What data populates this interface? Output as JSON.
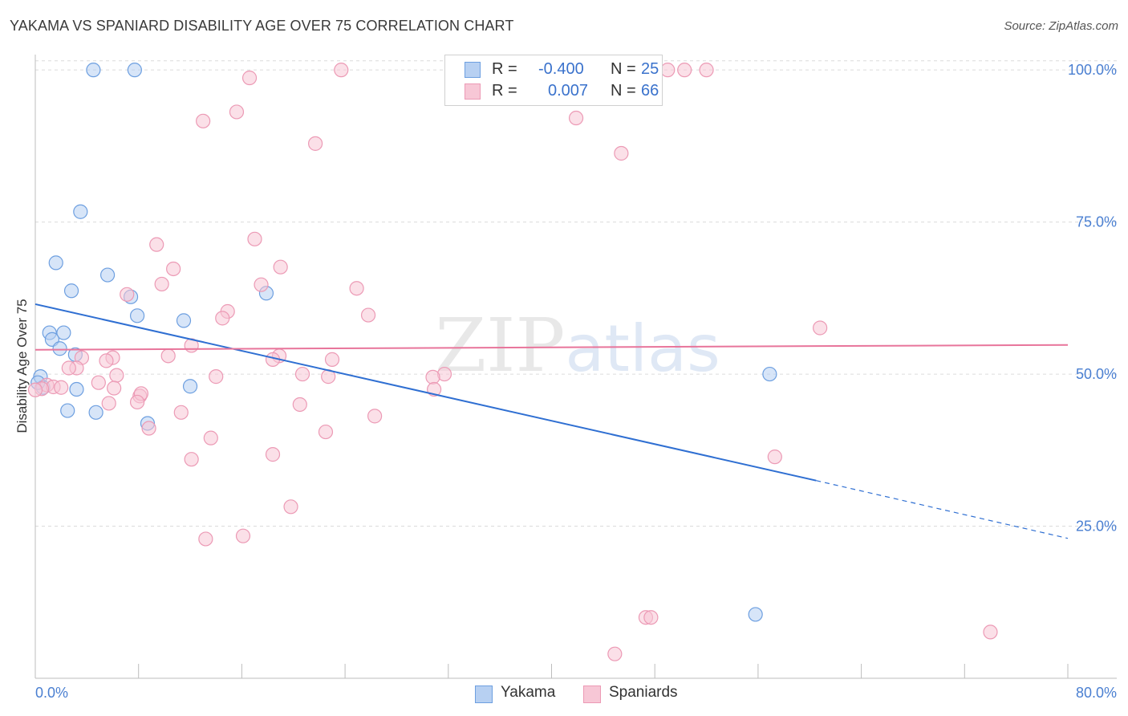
{
  "header": {
    "title": "YAKAMA VS SPANIARD DISABILITY AGE OVER 75 CORRELATION CHART",
    "source": "Source: ZipAtlas.com"
  },
  "legend": {
    "rows": [
      {
        "r_label": "R =",
        "r_value": "-0.400",
        "n_label": "N =",
        "n_value": "25",
        "color": "#a9c8ef"
      },
      {
        "r_label": "R =",
        "r_value": "0.007",
        "n_label": "N =",
        "n_value": "66",
        "color": "#f5bfd0"
      }
    ]
  },
  "bottom_legend": {
    "yakama": "Yakama",
    "spaniards": "Spaniards"
  },
  "chart_data": {
    "type": "scatter",
    "title": "YAKAMA VS SPANIARD DISABILITY AGE OVER 75 CORRELATION CHART",
    "xlabel": "",
    "ylabel": "Disability Age Over 75",
    "xlim": [
      0,
      80
    ],
    "ylim": [
      0,
      102
    ],
    "x_tick_labels": [
      "0.0%",
      "80.0%"
    ],
    "y_tick_labels": [
      "25.0%",
      "50.0%",
      "75.0%",
      "100.0%"
    ],
    "y_tick_values": [
      25,
      50,
      75,
      100
    ],
    "grid": true,
    "watermark": "ZIPatlas",
    "series": [
      {
        "name": "Yakama",
        "color": "#6d9fe0",
        "fill": "#b7d0f2",
        "trend": {
          "x": [
            0,
            60.5
          ],
          "y": [
            61.5,
            32.5
          ],
          "dashed_to": [
            80,
            23.0
          ],
          "color": "#2f6fd2"
        },
        "points": [
          [
            4.5,
            100
          ],
          [
            7.7,
            100
          ],
          [
            3.5,
            76.7
          ],
          [
            1.6,
            68.3
          ],
          [
            5.6,
            66.3
          ],
          [
            2.8,
            63.7
          ],
          [
            7.4,
            62.7
          ],
          [
            7.9,
            59.6
          ],
          [
            11.5,
            58.8
          ],
          [
            17.9,
            63.3
          ],
          [
            1.1,
            56.8
          ],
          [
            2.2,
            56.8
          ],
          [
            1.3,
            55.7
          ],
          [
            1.9,
            54.2
          ],
          [
            3.1,
            53.2
          ],
          [
            0.4,
            49.6
          ],
          [
            0.6,
            47.8
          ],
          [
            3.2,
            47.5
          ],
          [
            12.0,
            48.0
          ],
          [
            2.5,
            44.0
          ],
          [
            4.7,
            43.7
          ],
          [
            8.7,
            41.9
          ],
          [
            56.9,
            50.0
          ],
          [
            55.8,
            10.5
          ],
          [
            0.2,
            48.6
          ]
        ]
      },
      {
        "name": "Spaniards",
        "color": "#ec9ab5",
        "fill": "#f7c7d6",
        "trend": {
          "x": [
            0,
            80
          ],
          "y": [
            54.0,
            54.8
          ],
          "color": "#e8759b"
        },
        "points": [
          [
            16.6,
            98.7
          ],
          [
            23.7,
            100
          ],
          [
            49.0,
            100
          ],
          [
            50.3,
            100
          ],
          [
            52.0,
            100
          ],
          [
            13.0,
            91.6
          ],
          [
            15.6,
            93.1
          ],
          [
            21.7,
            87.9
          ],
          [
            41.9,
            92.1
          ],
          [
            45.4,
            86.3
          ],
          [
            9.4,
            71.3
          ],
          [
            17.0,
            72.2
          ],
          [
            10.7,
            67.3
          ],
          [
            19.0,
            67.6
          ],
          [
            9.8,
            64.8
          ],
          [
            17.5,
            64.7
          ],
          [
            24.9,
            64.1
          ],
          [
            7.1,
            63.1
          ],
          [
            14.9,
            60.3
          ],
          [
            14.5,
            59.2
          ],
          [
            25.8,
            59.7
          ],
          [
            60.8,
            57.6
          ],
          [
            12.1,
            54.7
          ],
          [
            6.0,
            52.7
          ],
          [
            3.6,
            52.7
          ],
          [
            10.3,
            53.0
          ],
          [
            18.9,
            53.0
          ],
          [
            18.4,
            52.4
          ],
          [
            23.0,
            52.4
          ],
          [
            5.5,
            52.2
          ],
          [
            3.2,
            51.0
          ],
          [
            2.6,
            51.0
          ],
          [
            6.3,
            49.8
          ],
          [
            14.0,
            49.6
          ],
          [
            20.7,
            50.0
          ],
          [
            22.7,
            49.6
          ],
          [
            31.7,
            50.0
          ],
          [
            30.8,
            49.5
          ],
          [
            4.9,
            48.6
          ],
          [
            0.9,
            48.2
          ],
          [
            1.4,
            47.9
          ],
          [
            2.0,
            47.8
          ],
          [
            6.1,
            47.7
          ],
          [
            8.1,
            46.4
          ],
          [
            8.2,
            46.8
          ],
          [
            0.5,
            47.6
          ],
          [
            5.7,
            45.2
          ],
          [
            7.9,
            45.4
          ],
          [
            20.5,
            45.0
          ],
          [
            30.9,
            47.5
          ],
          [
            11.3,
            43.7
          ],
          [
            26.3,
            43.1
          ],
          [
            8.8,
            41.1
          ],
          [
            22.5,
            40.5
          ],
          [
            13.6,
            39.5
          ],
          [
            18.4,
            36.8
          ],
          [
            12.1,
            36.0
          ],
          [
            57.3,
            36.4
          ],
          [
            19.8,
            28.2
          ],
          [
            13.2,
            22.9
          ],
          [
            16.1,
            23.4
          ],
          [
            47.3,
            10.0
          ],
          [
            47.7,
            10.0
          ],
          [
            44.9,
            4.0
          ],
          [
            74.0,
            7.6
          ],
          [
            0.0,
            47.4
          ]
        ]
      }
    ]
  }
}
